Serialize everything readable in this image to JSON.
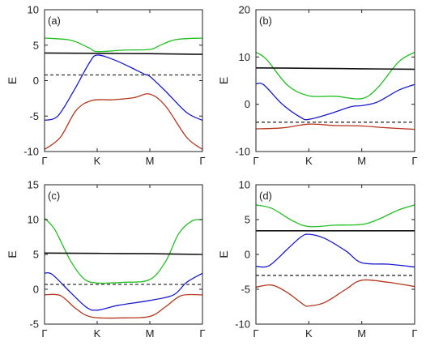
{
  "figure": {
    "colors": {
      "green": "#22c022",
      "black": "#111111",
      "blue": "#1a1acf",
      "red": "#b5361c",
      "dashed": "#333333"
    }
  },
  "chart_data": [
    {
      "type": "line",
      "panel_label": "(a)",
      "ylabel": "E",
      "ylim": [
        -10,
        10
      ],
      "yticks": [
        10,
        5,
        0,
        -5,
        -10
      ],
      "x_categories": [
        "Γ",
        "K",
        "M",
        "Γ"
      ],
      "series": [
        {
          "color": "green",
          "style": "solid",
          "values": [
            [
              0,
              6.0
            ],
            [
              0.5,
              5.7
            ],
            [
              0.85,
              4.6
            ],
            [
              1.0,
              4.1
            ],
            [
              1.5,
              4.3
            ],
            [
              2.0,
              4.4
            ],
            [
              2.2,
              5.0
            ],
            [
              2.5,
              5.8
            ],
            [
              3.0,
              6.0
            ]
          ]
        },
        {
          "color": "black",
          "style": "solid",
          "values": [
            [
              0,
              3.9
            ],
            [
              1.0,
              3.85
            ],
            [
              2.0,
              3.8
            ],
            [
              3.0,
              3.7
            ]
          ]
        },
        {
          "color": "dashed",
          "style": "dashed",
          "values": [
            [
              0,
              0.8
            ],
            [
              3.0,
              0.8
            ]
          ]
        },
        {
          "color": "blue",
          "style": "solid",
          "values": [
            [
              0,
              -5.6
            ],
            [
              0.25,
              -5.0
            ],
            [
              0.55,
              -1.5
            ],
            [
              0.85,
              2.5
            ],
            [
              1.0,
              3.6
            ],
            [
              1.3,
              3.0
            ],
            [
              1.6,
              2.0
            ],
            [
              1.9,
              0.9
            ],
            [
              2.0,
              0.6
            ],
            [
              2.3,
              -1.5
            ],
            [
              2.7,
              -4.5
            ],
            [
              3.0,
              -5.6
            ]
          ]
        },
        {
          "color": "red",
          "style": "solid",
          "values": [
            [
              0,
              -9.7
            ],
            [
              0.3,
              -8.0
            ],
            [
              0.6,
              -4.2
            ],
            [
              0.9,
              -2.8
            ],
            [
              1.3,
              -2.7
            ],
            [
              1.7,
              -2.4
            ],
            [
              2.0,
              -1.9
            ],
            [
              2.3,
              -3.6
            ],
            [
              2.7,
              -8.0
            ],
            [
              3.0,
              -9.7
            ]
          ]
        }
      ]
    },
    {
      "type": "line",
      "panel_label": "(b)",
      "ylabel": "E",
      "ylim": [
        -10,
        20
      ],
      "yticks": [
        20,
        10,
        0,
        -10
      ],
      "x_categories": [
        "Γ",
        "K",
        "M",
        "Γ"
      ],
      "series": [
        {
          "color": "green",
          "style": "solid",
          "values": [
            [
              0,
              11.0
            ],
            [
              0.2,
              9.5
            ],
            [
              0.6,
              4.0
            ],
            [
              1.0,
              1.8
            ],
            [
              1.5,
              1.7
            ],
            [
              2.0,
              1.2
            ],
            [
              2.3,
              3.5
            ],
            [
              2.7,
              9.0
            ],
            [
              3.0,
              11.0
            ]
          ]
        },
        {
          "color": "black",
          "style": "solid",
          "values": [
            [
              0,
              7.7
            ],
            [
              1.0,
              7.6
            ],
            [
              2.0,
              7.5
            ],
            [
              3.0,
              7.4
            ]
          ]
        },
        {
          "color": "blue",
          "style": "solid",
          "values": [
            [
              0,
              4.3
            ],
            [
              0.15,
              4.1
            ],
            [
              0.5,
              0.0
            ],
            [
              0.85,
              -2.8
            ],
            [
              1.0,
              -3.2
            ],
            [
              1.4,
              -2.0
            ],
            [
              1.8,
              -0.5
            ],
            [
              2.0,
              -0.3
            ],
            [
              2.3,
              0.5
            ],
            [
              2.7,
              3.0
            ],
            [
              3.0,
              4.2
            ]
          ]
        },
        {
          "color": "dashed",
          "style": "dashed",
          "values": [
            [
              0,
              -3.8
            ],
            [
              3.0,
              -3.8
            ]
          ]
        },
        {
          "color": "red",
          "style": "solid",
          "values": [
            [
              0,
              -5.2
            ],
            [
              0.5,
              -5.0
            ],
            [
              1.0,
              -4.2
            ],
            [
              1.5,
              -4.5
            ],
            [
              2.0,
              -4.6
            ],
            [
              2.5,
              -5.0
            ],
            [
              3.0,
              -5.3
            ]
          ]
        }
      ]
    },
    {
      "type": "line",
      "panel_label": "(c)",
      "ylabel": "E",
      "ylim": [
        -5,
        15
      ],
      "yticks": [
        15,
        10,
        5,
        0,
        -5
      ],
      "x_categories": [
        "Γ",
        "K",
        "M",
        "Γ"
      ],
      "series": [
        {
          "color": "green",
          "style": "solid",
          "values": [
            [
              0,
              10.2
            ],
            [
              0.2,
              8.5
            ],
            [
              0.5,
              4.0
            ],
            [
              0.75,
              1.5
            ],
            [
              1.0,
              0.9
            ],
            [
              1.5,
              1.0
            ],
            [
              2.0,
              1.4
            ],
            [
              2.3,
              4.0
            ],
            [
              2.55,
              8.0
            ],
            [
              2.8,
              9.8
            ],
            [
              3.0,
              10.0
            ]
          ]
        },
        {
          "color": "black",
          "style": "solid",
          "values": [
            [
              0,
              5.2
            ],
            [
              1.0,
              5.15
            ],
            [
              2.0,
              5.1
            ],
            [
              3.0,
              5.0
            ]
          ]
        },
        {
          "color": "blue",
          "style": "solid",
          "values": [
            [
              0,
              2.3
            ],
            [
              0.15,
              2.1
            ],
            [
              0.5,
              -0.5
            ],
            [
              0.8,
              -2.6
            ],
            [
              1.0,
              -3.0
            ],
            [
              1.4,
              -2.3
            ],
            [
              2.0,
              -1.6
            ],
            [
              2.45,
              -0.8
            ],
            [
              2.7,
              1.0
            ],
            [
              3.0,
              2.3
            ]
          ]
        },
        {
          "color": "dashed",
          "style": "dashed",
          "values": [
            [
              0,
              0.7
            ],
            [
              3.0,
              0.7
            ]
          ]
        },
        {
          "color": "red",
          "style": "solid",
          "values": [
            [
              0,
              -0.8
            ],
            [
              0.3,
              -0.9
            ],
            [
              0.6,
              -2.8
            ],
            [
              0.9,
              -4.0
            ],
            [
              1.5,
              -4.1
            ],
            [
              2.0,
              -3.9
            ],
            [
              2.3,
              -2.5
            ],
            [
              2.6,
              -0.9
            ],
            [
              3.0,
              -0.8
            ]
          ]
        }
      ]
    },
    {
      "type": "line",
      "panel_label": "(d)",
      "ylabel": "E",
      "ylim": [
        -10,
        10
      ],
      "yticks": [
        10,
        5,
        0,
        -5,
        -10
      ],
      "x_categories": [
        "Γ",
        "K",
        "M",
        "Γ"
      ],
      "series": [
        {
          "color": "green",
          "style": "solid",
          "values": [
            [
              0,
              7.1
            ],
            [
              0.3,
              6.6
            ],
            [
              0.7,
              4.8
            ],
            [
              1.0,
              4.0
            ],
            [
              1.5,
              4.2
            ],
            [
              2.0,
              4.3
            ],
            [
              2.3,
              5.0
            ],
            [
              2.7,
              6.4
            ],
            [
              3.0,
              7.1
            ]
          ]
        },
        {
          "color": "black",
          "style": "solid",
          "values": [
            [
              0,
              3.4
            ],
            [
              1.0,
              3.4
            ],
            [
              2.0,
              3.4
            ],
            [
              3.0,
              3.4
            ]
          ]
        },
        {
          "color": "blue",
          "style": "solid",
          "values": [
            [
              0,
              -1.7
            ],
            [
              0.25,
              -1.6
            ],
            [
              0.6,
              0.8
            ],
            [
              0.85,
              2.5
            ],
            [
              1.0,
              2.9
            ],
            [
              1.3,
              2.3
            ],
            [
              1.7,
              0.5
            ],
            [
              2.0,
              -1.2
            ],
            [
              2.5,
              -1.4
            ],
            [
              3.0,
              -1.8
            ]
          ]
        },
        {
          "color": "dashed",
          "style": "dashed",
          "values": [
            [
              0,
              -3.0
            ],
            [
              3.0,
              -3.0
            ]
          ]
        },
        {
          "color": "red",
          "style": "solid",
          "values": [
            [
              0,
              -4.7
            ],
            [
              0.3,
              -4.4
            ],
            [
              0.6,
              -5.5
            ],
            [
              0.9,
              -7.2
            ],
            [
              1.0,
              -7.4
            ],
            [
              1.3,
              -6.9
            ],
            [
              1.7,
              -5.0
            ],
            [
              2.0,
              -3.7
            ],
            [
              2.5,
              -4.0
            ],
            [
              3.0,
              -4.6
            ]
          ]
        }
      ]
    }
  ]
}
